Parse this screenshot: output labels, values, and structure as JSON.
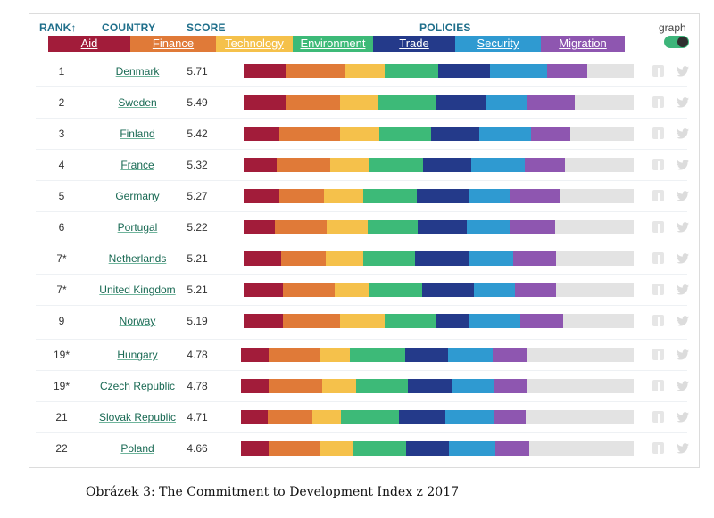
{
  "headers": {
    "rank": "RANK↑",
    "country": "COUNTRY",
    "score": "SCORE",
    "policies": "POLICIES",
    "graph": "graph"
  },
  "colors": {
    "aid": "#a21c3a",
    "finance": "#e07a38",
    "technology": "#f5c14b",
    "environment": "#3dba78",
    "trade": "#243a8a",
    "security": "#2f9ad1",
    "migration": "#8e56b0",
    "track": "#e3e3e3"
  },
  "caption": "Obrázek 3: The Commitment to Development Index z 2017",
  "chart_data": {
    "type": "bar",
    "stacked": true,
    "legend": [
      "Aid",
      "Finance",
      "Technology",
      "Environment",
      "Trade",
      "Security",
      "Migration"
    ],
    "rows": [
      {
        "rank": "1",
        "country": "Denmark",
        "score": "5.71",
        "values": [
          48,
          65,
          45,
          60,
          58,
          64,
          45
        ]
      },
      {
        "rank": "2",
        "country": "Sweden",
        "score": "5.49",
        "values": [
          48,
          60,
          42,
          66,
          56,
          46,
          53
        ]
      },
      {
        "rank": "3",
        "country": "Finland",
        "score": "5.42",
        "values": [
          40,
          68,
          44,
          58,
          54,
          58,
          44
        ]
      },
      {
        "rank": "4",
        "country": "France",
        "score": "5.32",
        "values": [
          37,
          60,
          44,
          60,
          54,
          60,
          45
        ]
      },
      {
        "rank": "5",
        "country": "Germany",
        "score": "5.27",
        "values": [
          40,
          50,
          44,
          60,
          58,
          46,
          57
        ]
      },
      {
        "rank": "6",
        "country": "Portugal",
        "score": "5.22",
        "values": [
          35,
          58,
          46,
          56,
          55,
          48,
          51
        ]
      },
      {
        "rank": "7*",
        "country": "Netherlands",
        "score": "5.21",
        "values": [
          42,
          50,
          42,
          58,
          60,
          50,
          48
        ]
      },
      {
        "rank": "7*",
        "country": "United Kingdom",
        "score": "5.21",
        "values": [
          44,
          58,
          38,
          60,
          58,
          46,
          46
        ]
      },
      {
        "rank": "9",
        "country": "Norway",
        "score": "5.19",
        "values": [
          44,
          64,
          50,
          58,
          36,
          58,
          48
        ]
      },
      {
        "rank": "19*",
        "country": "Hungary",
        "score": "4.78",
        "values": [
          31,
          58,
          33,
          62,
          48,
          50,
          38
        ]
      },
      {
        "rank": "19*",
        "country": "Czech Republic",
        "score": "4.78",
        "values": [
          31,
          60,
          38,
          58,
          50,
          46,
          38
        ]
      },
      {
        "rank": "21",
        "country": "Slovak Republic",
        "score": "4.71",
        "values": [
          30,
          50,
          32,
          65,
          52,
          54,
          36
        ]
      },
      {
        "rank": "22",
        "country": "Poland",
        "score": "4.66",
        "values": [
          31,
          58,
          36,
          60,
          48,
          52,
          38
        ]
      }
    ]
  }
}
